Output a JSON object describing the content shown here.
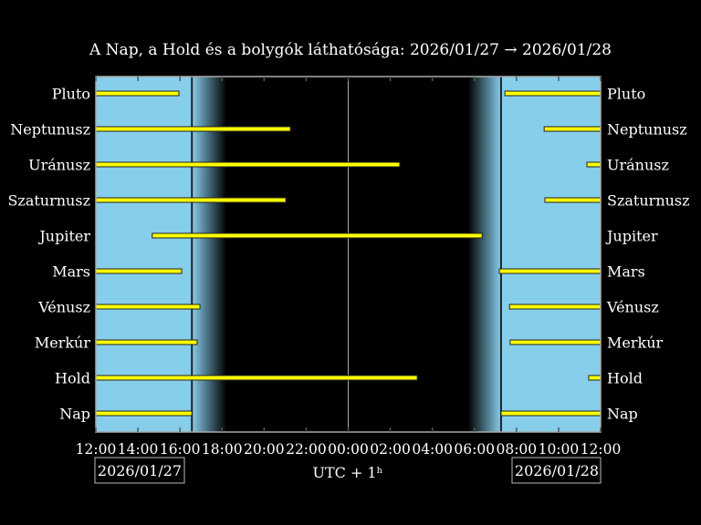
{
  "chart_data": {
    "type": "bar",
    "subtype": "timeline",
    "title": "A Nap, a Hold és a bolygók láthatósága: 2026/01/27 → 2026/01/28",
    "xlabel": "UTC + 1ʰ",
    "x_range": [
      "2026-01-27 12:00",
      "2026-01-28 12:00"
    ],
    "x_ticks": [
      "12:00",
      "14:00",
      "16:00",
      "18:00",
      "20:00",
      "22:00",
      "00:00",
      "02:00",
      "04:00",
      "06:00",
      "08:00",
      "10:00",
      "12:00"
    ],
    "date_labels": {
      "left": "2026/01/27",
      "right": "2026/01/28"
    },
    "midnight_line": "2026-01-28 00:00",
    "sunset": "2026-01-27 16:34",
    "dark_start": "2026-01-27 18:13",
    "dark_end": "2026-01-28 05:42",
    "sunrise": "2026-01-28 07:16",
    "colors": {
      "day": "#87ceeb",
      "night": "#000000",
      "bar": "#ffff00",
      "bar_edge": "#222222"
    },
    "categories": [
      "Pluto",
      "Neptunusz",
      "Uránusz",
      "Szaturnusz",
      "Jupiter",
      "Mars",
      "Vénusz",
      "Merkúr",
      "Hold",
      "Nap"
    ],
    "intervals": {
      "Pluto": [
        [
          "2026-01-27 12:00",
          "2026-01-27 15:57"
        ],
        [
          "2026-01-28 07:27",
          "2026-01-28 12:00"
        ]
      ],
      "Neptunusz": [
        [
          "2026-01-27 12:00",
          "2026-01-27 21:15"
        ],
        [
          "2026-01-28 09:19",
          "2026-01-28 12:00"
        ]
      ],
      "Uránusz": [
        [
          "2026-01-27 12:00",
          "2026-01-28 02:27"
        ],
        [
          "2026-01-28 11:21",
          "2026-01-28 12:00"
        ]
      ],
      "Szaturnusz": [
        [
          "2026-01-27 12:00",
          "2026-01-27 21:02"
        ],
        [
          "2026-01-28 09:21",
          "2026-01-28 12:00"
        ]
      ],
      "Jupiter": [
        [
          "2026-01-27 14:41",
          "2026-01-28 06:22"
        ]
      ],
      "Mars": [
        [
          "2026-01-27 12:00",
          "2026-01-27 16:05"
        ],
        [
          "2026-01-28 07:11",
          "2026-01-28 12:00"
        ]
      ],
      "Vénusz": [
        [
          "2026-01-27 12:00",
          "2026-01-27 16:57"
        ],
        [
          "2026-01-28 07:40",
          "2026-01-28 12:00"
        ]
      ],
      "Merkúr": [
        [
          "2026-01-27 12:00",
          "2026-01-27 16:49"
        ],
        [
          "2026-01-28 07:42",
          "2026-01-28 12:00"
        ]
      ],
      "Hold": [
        [
          "2026-01-27 12:00",
          "2026-01-28 03:17"
        ],
        [
          "2026-01-28 11:26",
          "2026-01-28 12:00"
        ]
      ],
      "Nap": [
        [
          "2026-01-27 12:00",
          "2026-01-27 16:34"
        ],
        [
          "2026-01-28 07:16",
          "2026-01-28 12:00"
        ]
      ]
    }
  }
}
